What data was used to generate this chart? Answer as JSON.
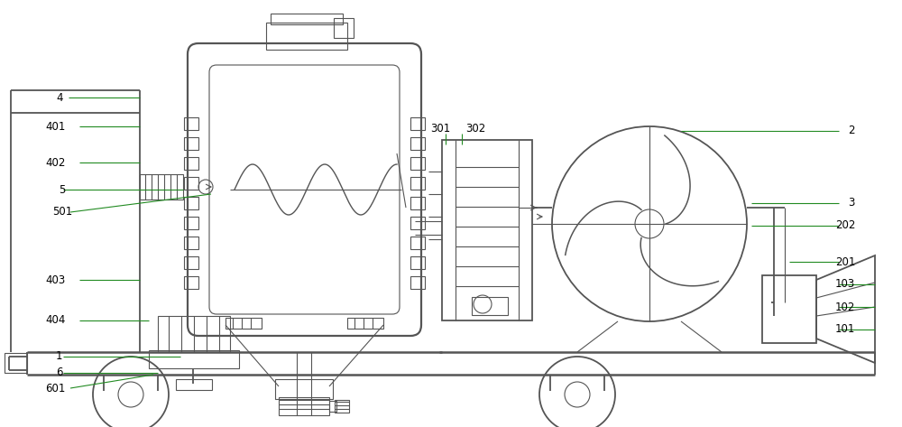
{
  "fig_width": 10.0,
  "fig_height": 4.73,
  "dpi": 100,
  "bg_color": "#ffffff",
  "line_color": "#555555",
  "lw_main": 1.3,
  "lw_thin": 0.8,
  "label_color": "#000000",
  "label_fontsize": 8.5,
  "label_green": "#228B22"
}
